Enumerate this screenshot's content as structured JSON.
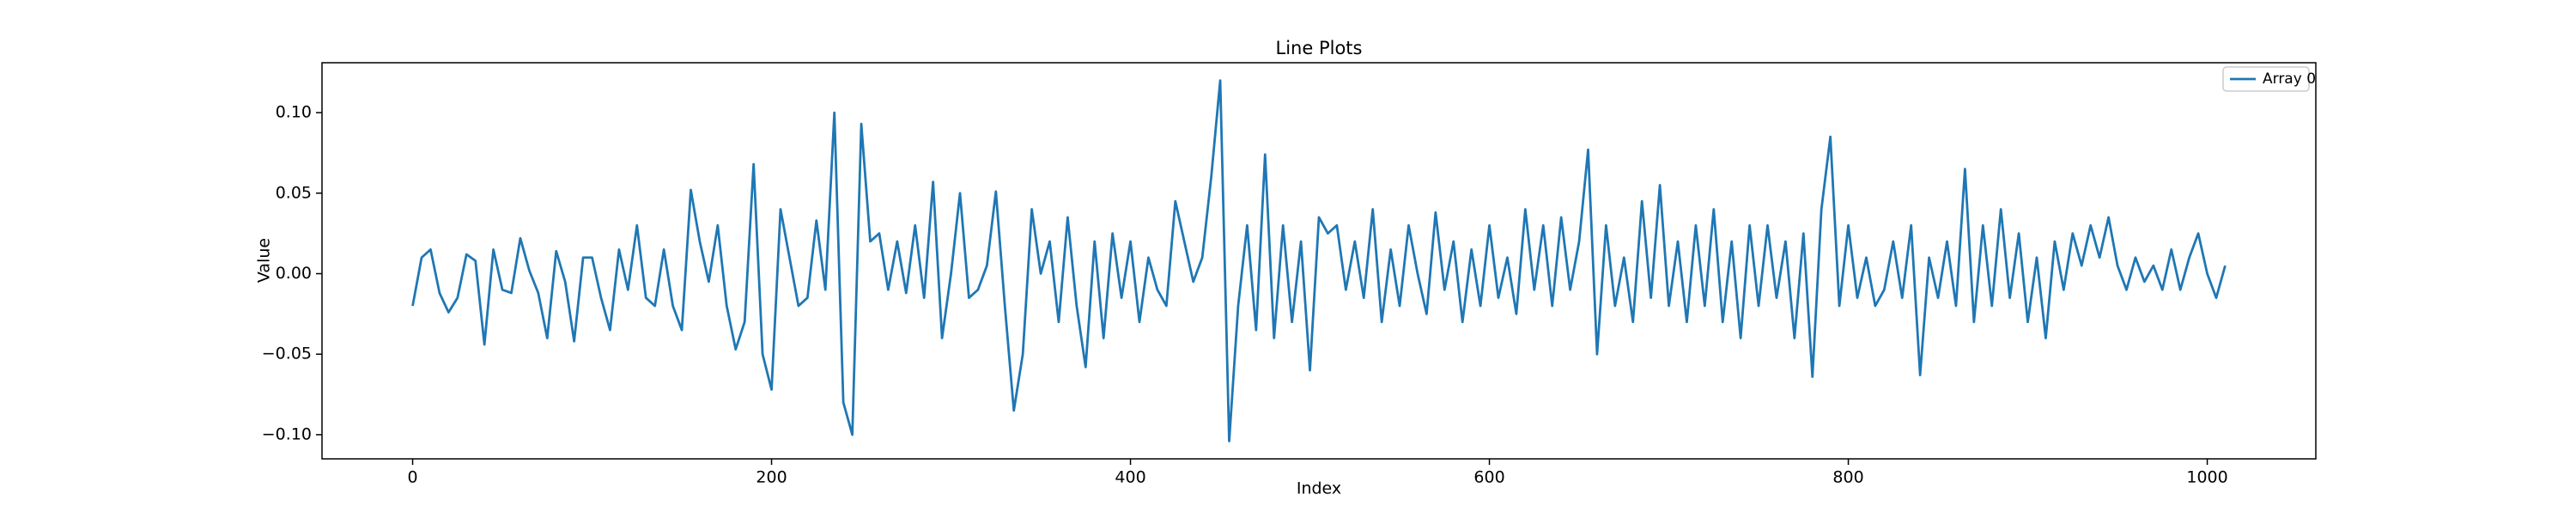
{
  "chart_data": {
    "type": "line",
    "title": "Line Plots",
    "xlabel": "Index",
    "ylabel": "Value",
    "legend": "upper right",
    "xlim": [
      -50.5,
      1060.5
    ],
    "ylim": [
      -0.115,
      0.131
    ],
    "xticks": [
      0,
      200,
      400,
      600,
      800,
      1000
    ],
    "yticks": [
      {
        "value": -0.1,
        "label": "−0.10"
      },
      {
        "value": -0.05,
        "label": "−0.05"
      },
      {
        "value": 0.0,
        "label": "0.00"
      },
      {
        "value": 0.05,
        "label": "0.05"
      },
      {
        "value": 0.1,
        "label": "0.10"
      }
    ],
    "x": [
      0,
      5,
      10,
      15,
      20,
      25,
      30,
      35,
      40,
      45,
      50,
      55,
      60,
      65,
      70,
      75,
      80,
      85,
      90,
      95,
      100,
      105,
      110,
      115,
      120,
      125,
      130,
      135,
      140,
      145,
      150,
      155,
      160,
      165,
      170,
      175,
      180,
      185,
      190,
      195,
      200,
      205,
      210,
      215,
      220,
      225,
      230,
      235,
      240,
      245,
      250,
      255,
      260,
      265,
      270,
      275,
      280,
      285,
      290,
      295,
      300,
      305,
      310,
      315,
      320,
      325,
      330,
      335,
      340,
      345,
      350,
      355,
      360,
      365,
      370,
      375,
      380,
      385,
      390,
      395,
      400,
      405,
      410,
      415,
      420,
      425,
      430,
      435,
      440,
      445,
      450,
      455,
      460,
      465,
      470,
      475,
      480,
      485,
      490,
      495,
      500,
      505,
      510,
      515,
      520,
      525,
      530,
      535,
      540,
      545,
      550,
      555,
      560,
      565,
      570,
      575,
      580,
      585,
      590,
      595,
      600,
      605,
      610,
      615,
      620,
      625,
      630,
      635,
      640,
      645,
      650,
      655,
      660,
      665,
      670,
      675,
      680,
      685,
      690,
      695,
      700,
      705,
      710,
      715,
      720,
      725,
      730,
      735,
      740,
      745,
      750,
      755,
      760,
      765,
      770,
      775,
      780,
      785,
      790,
      795,
      800,
      805,
      810,
      815,
      820,
      825,
      830,
      835,
      840,
      845,
      850,
      855,
      860,
      865,
      870,
      875,
      880,
      885,
      890,
      895,
      900,
      905,
      910,
      915,
      920,
      925,
      930,
      935,
      940,
      945,
      950,
      955,
      960,
      965,
      970,
      975,
      980,
      985,
      990,
      995,
      1000,
      1005,
      1010
    ],
    "series": [
      {
        "name": "Array 0",
        "color": "#1f77b4",
        "values": [
          -0.02,
          0.01,
          0.015,
          -0.012,
          -0.024,
          -0.015,
          0.012,
          0.008,
          -0.044,
          0.015,
          -0.01,
          -0.012,
          0.022,
          0.002,
          -0.012,
          -0.04,
          0.014,
          -0.005,
          -0.042,
          0.01,
          0.01,
          -0.015,
          -0.035,
          0.015,
          -0.01,
          0.03,
          -0.015,
          -0.02,
          0.015,
          -0.02,
          -0.035,
          0.052,
          0.02,
          -0.005,
          0.03,
          -0.02,
          -0.047,
          -0.03,
          0.068,
          -0.05,
          -0.072,
          0.04,
          0.01,
          -0.02,
          -0.015,
          0.033,
          -0.01,
          0.1,
          -0.08,
          -0.1,
          0.093,
          0.02,
          0.025,
          -0.01,
          0.02,
          -0.012,
          0.03,
          -0.015,
          0.057,
          -0.04,
          0.0,
          0.05,
          -0.015,
          -0.01,
          0.005,
          0.051,
          -0.02,
          -0.085,
          -0.05,
          0.04,
          0.0,
          0.02,
          -0.03,
          0.035,
          -0.02,
          -0.058,
          0.02,
          -0.04,
          0.025,
          -0.015,
          0.02,
          -0.03,
          0.01,
          -0.01,
          -0.02,
          0.045,
          0.02,
          -0.005,
          0.01,
          0.06,
          0.12,
          -0.104,
          -0.02,
          0.03,
          -0.035,
          0.074,
          -0.04,
          0.03,
          -0.03,
          0.02,
          -0.06,
          0.035,
          0.025,
          0.03,
          -0.01,
          0.02,
          -0.015,
          0.04,
          -0.03,
          0.015,
          -0.02,
          0.03,
          0.0,
          -0.025,
          0.038,
          -0.01,
          0.02,
          -0.03,
          0.015,
          -0.02,
          0.03,
          -0.015,
          0.01,
          -0.025,
          0.04,
          -0.01,
          0.03,
          -0.02,
          0.035,
          -0.01,
          0.02,
          0.077,
          -0.05,
          0.03,
          -0.02,
          0.01,
          -0.03,
          0.045,
          -0.015,
          0.055,
          -0.02,
          0.02,
          -0.03,
          0.03,
          -0.02,
          0.04,
          -0.03,
          0.02,
          -0.04,
          0.03,
          -0.02,
          0.03,
          -0.015,
          0.02,
          -0.04,
          0.025,
          -0.064,
          0.04,
          0.085,
          -0.02,
          0.03,
          -0.015,
          0.01,
          -0.02,
          -0.01,
          0.02,
          -0.015,
          0.03,
          -0.063,
          0.01,
          -0.015,
          0.02,
          -0.02,
          0.065,
          -0.03,
          0.03,
          -0.02,
          0.04,
          -0.015,
          0.025,
          -0.03,
          0.01,
          -0.04,
          0.02,
          -0.01,
          0.025,
          0.005,
          0.03,
          0.01,
          0.035,
          0.005,
          -0.01,
          0.01,
          -0.005,
          0.005,
          -0.01,
          0.015,
          -0.01,
          0.01,
          0.025,
          0.0,
          -0.015,
          0.005
        ]
      }
    ]
  }
}
